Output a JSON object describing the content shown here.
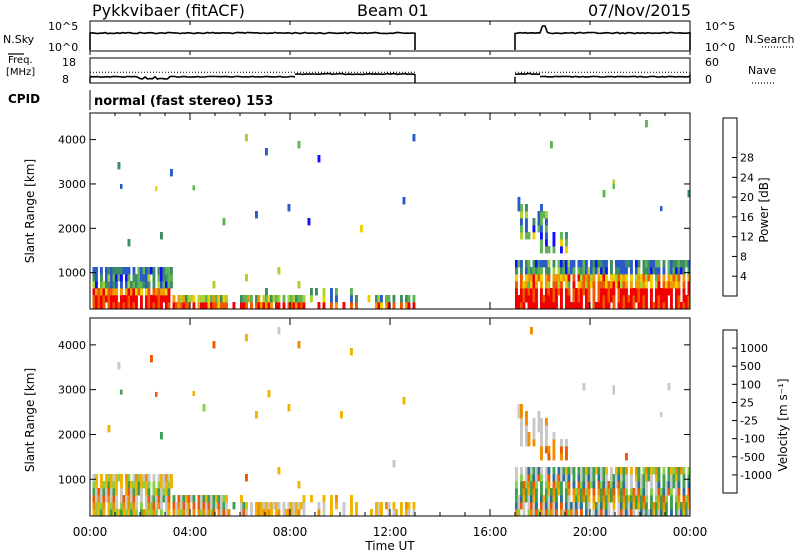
{
  "header": {
    "radar": "Pykkvibaer (fitACF)",
    "beam": "Beam 01",
    "date": "07/Nov/2015"
  },
  "labels": {
    "nsky": "N.Sky",
    "nsearch": "N.Search",
    "freq_line1": "Freq.",
    "freq_line2": "[MHz]",
    "nave": "Nave",
    "cpid": "CPID",
    "cpid_value": "normal (fast stereo) 153"
  },
  "colors": {
    "power": [
      "#1010ff",
      "#2a5ac8",
      "#3c8c64",
      "#60b454",
      "#aad232",
      "#f0d000",
      "#f09c00",
      "#f05800",
      "#f00000"
    ],
    "velocity": [
      "#f00000",
      "#f05800",
      "#f08c00",
      "#f0b400",
      "#c8c8c8",
      "#88d048",
      "#3ca050",
      "#2a6e9c",
      "#2040c0"
    ]
  },
  "chart_data": [
    {
      "type": "line",
      "name": "noise",
      "ylim_left": [
        "10^0",
        "10^5"
      ],
      "ylim_right": [
        "10^0",
        "10^5"
      ],
      "left_label": "N.Sky",
      "right_label": "N.Search",
      "x_hours": [
        0,
        13.0,
        13.0,
        17.0,
        17.0,
        24
      ],
      "segments": [
        [
          0,
          13.0
        ],
        [
          17.0,
          24
        ]
      ]
    },
    {
      "type": "line",
      "name": "frequency",
      "left_label": "Freq. [MHz]",
      "right_label": "Nave",
      "left_ticks": [
        "8",
        "18"
      ],
      "right_ticks": [
        "0",
        "60"
      ],
      "freq_segments": [
        {
          "x0": 0,
          "x1": 8.2,
          "y": 10.5
        },
        {
          "x0": 8.2,
          "x1": 13.0,
          "y": 11.6
        },
        {
          "x0": 17.0,
          "x1": 18.0,
          "y": 11.6
        },
        {
          "x0": 18.0,
          "x1": 24,
          "y": 10.5
        }
      ],
      "nave_dotted": 12.3
    },
    {
      "type": "heatmap",
      "name": "power",
      "xlabel": "",
      "ylabel": "Slant Range [km]",
      "ylim": [
        180,
        4600
      ],
      "yticks": [
        "1000",
        "2000",
        "3000",
        "4000"
      ],
      "colorbar_label": "Power [dB]",
      "colorbar_ticks": [
        "4",
        "8",
        "12",
        "16",
        "20",
        "24",
        "28"
      ]
    },
    {
      "type": "heatmap",
      "name": "velocity",
      "xlabel": "Time UT",
      "ylabel": "Slant Range [km]",
      "ylim": [
        180,
        4600
      ],
      "yticks": [
        "1000",
        "2000",
        "3000",
        "4000"
      ],
      "colorbar_label": "Velocity [m s⁻¹]",
      "colorbar_ticks": [
        "-1000",
        "-500",
        "-100",
        "-25",
        "25",
        "100",
        "500",
        "1000"
      ]
    }
  ],
  "xaxis": {
    "ticks": [
      "00:00",
      "04:00",
      "08:00",
      "12:00",
      "16:00",
      "20:00",
      "00:00"
    ],
    "label": "Time UT"
  }
}
